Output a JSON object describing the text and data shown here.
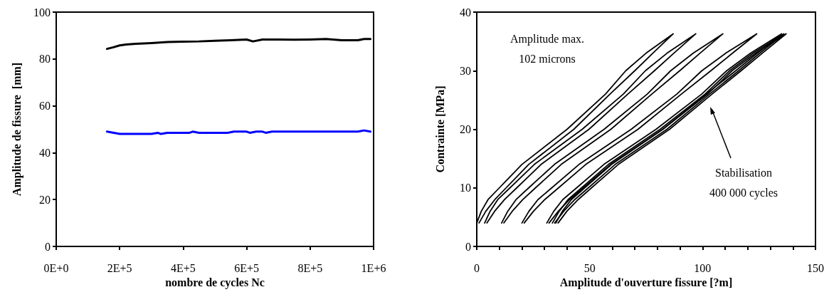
{
  "chart_data": [
    {
      "type": "line",
      "xlabel": "nombre de cycles Nc",
      "ylabel": "Amplitude de fissure  [mm]",
      "line_style": "solid",
      "xlim": [
        0,
        1000000
      ],
      "xticks": [
        {
          "value": 0,
          "label": "0E+0"
        },
        {
          "value": 200000,
          "label": "2E+5"
        },
        {
          "value": 400000,
          "label": "4E+5"
        },
        {
          "value": 600000,
          "label": "6E+5"
        },
        {
          "value": 800000,
          "label": "8E+5"
        },
        {
          "value": 1000000,
          "label": "1E+6"
        }
      ],
      "ylim": [
        0,
        100
      ],
      "yticks": [
        0,
        20,
        40,
        60,
        80,
        100
      ],
      "series": [
        {
          "color": "#000000",
          "x": [
            160000,
            180000,
            200000,
            220000,
            250000,
            300000,
            350000,
            400000,
            450000,
            500000,
            550000,
            600000,
            620000,
            650000,
            700000,
            750000,
            800000,
            850000,
            900000,
            950000,
            970000,
            990000
          ],
          "values": [
            84.3,
            85,
            85.8,
            86.2,
            86.5,
            86.8,
            87.2,
            87.4,
            87.5,
            87.8,
            88,
            88.3,
            87.5,
            88.3,
            88.3,
            88.2,
            88.3,
            88.5,
            88,
            88,
            88.5,
            88.5
          ]
        },
        {
          "color": "#0000ff",
          "x": [
            160000,
            200000,
            300000,
            320000,
            330000,
            350000,
            420000,
            430000,
            450000,
            540000,
            560000,
            600000,
            610000,
            630000,
            650000,
            660000,
            680000,
            950000,
            970000,
            990000
          ],
          "values": [
            49,
            48,
            48,
            48.5,
            48,
            48.5,
            48.5,
            49,
            48.5,
            48.5,
            49,
            49,
            48.5,
            49,
            49,
            48.5,
            49,
            49,
            49.5,
            49
          ]
        }
      ]
    },
    {
      "type": "line",
      "xlabel": "Amplitude d'ouverture fissure [?m]",
      "ylabel": "Contrainte [MPa]",
      "marker": "none",
      "line_style": "solid",
      "xlim": [
        0,
        150
      ],
      "xticks": [
        0,
        {
          "value": 10,
          "label": null
        },
        {
          "value": 20,
          "label": null
        },
        {
          "value": 30,
          "label": null
        },
        {
          "value": 40,
          "label": null
        },
        50,
        {
          "value": 60,
          "label": null
        },
        {
          "value": 70,
          "label": null
        },
        {
          "value": 80,
          "label": null
        },
        {
          "value": 90,
          "label": null
        },
        100,
        {
          "value": 110,
          "label": null
        },
        {
          "value": 120,
          "label": null
        },
        {
          "value": 130,
          "label": null
        },
        {
          "value": 140,
          "label": null
        },
        150
      ],
      "ylim": [
        0,
        40
      ],
      "yticks": [
        0,
        10,
        20,
        30,
        40
      ],
      "annotations": [
        "Amplitude max.\n102 microns",
        "Stabilisation\n400 000 cycles"
      ],
      "series": [
        {
          "color": "#000000",
          "x": [
            0,
            2,
            5,
            10,
            20,
            40,
            57,
            66,
            75,
            87,
            78,
            70,
            59,
            43,
            23,
            13,
            8,
            4,
            1
          ],
          "values": [
            4,
            6,
            8,
            10,
            14,
            20,
            26,
            30,
            33,
            36.3,
            33,
            30,
            26,
            20,
            14,
            10,
            8,
            6,
            4
          ]
        },
        {
          "color": "#000000",
          "x": [
            3.5,
            5.9,
            9.3,
            14.7,
            25.5,
            46.7,
            64.9,
            74.7,
            84.3,
            97,
            87.3,
            78.7,
            66.9,
            49.7,
            28.5,
            17.7,
            12.3,
            7.9,
            4.5
          ],
          "values": [
            4,
            6,
            8,
            10,
            14,
            20,
            26,
            30,
            33,
            36.3,
            33,
            30,
            26,
            20,
            14,
            10,
            8,
            6,
            4
          ]
        },
        {
          "color": "#000000",
          "x": [
            11,
            13.7,
            17.4,
            23,
            34.4,
            56.4,
            75.5,
            85.9,
            95.9,
            109,
            98.9,
            89.9,
            77.5,
            59.4,
            37.4,
            26,
            20.4,
            15.7,
            12
          ],
          "values": [
            4,
            6,
            8,
            10,
            14,
            20,
            26,
            30,
            33,
            36.3,
            33,
            30,
            26,
            20,
            14,
            10,
            8,
            6,
            4
          ]
        },
        {
          "color": "#000000",
          "x": [
            20,
            23.1,
            27.1,
            33.2,
            45.3,
            68.4,
            88.6,
            99.7,
            110.3,
            124,
            113.3,
            103.7,
            90.6,
            71.4,
            48.3,
            36.2,
            30.1,
            25.1,
            21
          ],
          "values": [
            4,
            6,
            8,
            10,
            14,
            20,
            26,
            30,
            33,
            36.3,
            33,
            30,
            26,
            20,
            14,
            10,
            8,
            6,
            4
          ]
        },
        {
          "color": "#000000",
          "x": [
            31,
            34.1,
            38.1,
            44.2,
            56.3,
            79.4,
            99.6,
            110.7,
            121.3,
            135,
            124.3,
            114.7,
            101.6,
            82.4,
            59.3,
            47.2,
            41.1,
            36.1,
            32
          ],
          "values": [
            4,
            6,
            8,
            10,
            14,
            20,
            26,
            30,
            33,
            36.3,
            33,
            30,
            26,
            20,
            14,
            10,
            8,
            6,
            4
          ]
        },
        {
          "color": "#000000",
          "x": [
            33.5,
            36.5,
            40.4,
            46.4,
            58.3,
            81.2,
            101.1,
            112,
            122.4,
            136,
            125.4,
            116,
            103.1,
            84.2,
            61.3,
            49.4,
            43.4,
            38.5,
            34.5
          ],
          "values": [
            4,
            6,
            8,
            10,
            14,
            20,
            26,
            30,
            33,
            36.3,
            33,
            30,
            26,
            20,
            14,
            10,
            8,
            6,
            4
          ]
        },
        {
          "color": "#000000",
          "x": [
            35,
            37.9,
            41.9,
            47.8,
            59.7,
            82.4,
            102.2,
            113.1,
            123.5,
            137,
            126.5,
            117.1,
            104.2,
            85.4,
            62.7,
            50.8,
            44.9,
            39.9,
            36
          ],
          "values": [
            4,
            6,
            8,
            10,
            14,
            20,
            26,
            30,
            33,
            36.3,
            33,
            30,
            26,
            20,
            14,
            10,
            8,
            6,
            4
          ]
        }
      ]
    }
  ]
}
